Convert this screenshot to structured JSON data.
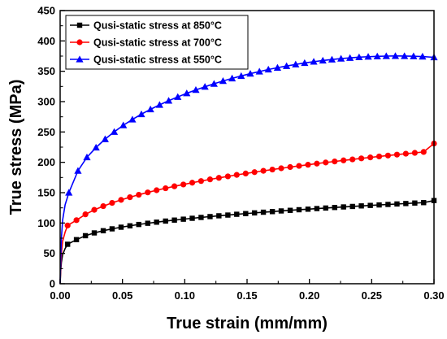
{
  "chart_data": {
    "type": "line",
    "title": "",
    "xlabel": "True strain (mm/mm)",
    "ylabel": "True stress (MPa)",
    "xlim": [
      0.0,
      0.3
    ],
    "ylim": [
      0,
      450
    ],
    "x_ticks": [
      "0.00",
      "0.05",
      "0.10",
      "0.15",
      "0.20",
      "0.25",
      "0.30"
    ],
    "y_ticks": [
      "0",
      "50",
      "100",
      "150",
      "200",
      "250",
      "300",
      "350",
      "400",
      "450"
    ],
    "grid": false,
    "legend_position": "top-left",
    "series": [
      {
        "name": "Qusi-static stress at 850°C",
        "color": "#000000",
        "marker": "square",
        "x": [
          0,
          0.0005,
          0.001,
          0.002,
          0.004,
          0.006,
          0.0131,
          0.0203,
          0.0274,
          0.0346,
          0.0417,
          0.0489,
          0.056,
          0.0631,
          0.0703,
          0.0774,
          0.0846,
          0.0917,
          0.0989,
          0.106,
          0.1131,
          0.1203,
          0.1274,
          0.1346,
          0.1417,
          0.1489,
          0.156,
          0.1631,
          0.1703,
          0.1774,
          0.1846,
          0.1917,
          0.1989,
          0.206,
          0.2131,
          0.2203,
          0.2274,
          0.2346,
          0.2417,
          0.2489,
          0.256,
          0.2631,
          0.2703,
          0.2774,
          0.2846,
          0.2917,
          0.3
        ],
        "y": [
          0,
          22,
          35,
          48,
          58,
          65,
          72.6,
          79.1,
          83.7,
          87.3,
          90.4,
          93.1,
          95.4,
          97.6,
          99.6,
          101.4,
          103.2,
          104.8,
          106.3,
          107.8,
          109.2,
          110.6,
          111.9,
          113.1,
          114.4,
          115.5,
          116.7,
          117.8,
          118.8,
          119.9,
          120.9,
          121.9,
          122.8,
          123.8,
          124.7,
          125.6,
          126.5,
          127.3,
          128.2,
          129.0,
          129.8,
          130.6,
          131.4,
          132.1,
          132.9,
          133.6,
          137
        ]
      },
      {
        "name": "Qusi-static stress at 700°C",
        "color": "#ff0000",
        "marker": "circle",
        "x": [
          0,
          0.0005,
          0.001,
          0.002,
          0.004,
          0.006,
          0.0131,
          0.0203,
          0.0274,
          0.0346,
          0.0417,
          0.0489,
          0.056,
          0.0631,
          0.0703,
          0.0774,
          0.0846,
          0.0917,
          0.0989,
          0.106,
          0.1131,
          0.1203,
          0.1274,
          0.1346,
          0.1417,
          0.1489,
          0.156,
          0.1631,
          0.1703,
          0.1774,
          0.1846,
          0.1917,
          0.1989,
          0.206,
          0.2131,
          0.2203,
          0.2274,
          0.2346,
          0.2417,
          0.2489,
          0.256,
          0.2631,
          0.2703,
          0.2774,
          0.2846,
          0.2917,
          0.3
        ],
        "y": [
          0,
          30,
          50,
          70,
          85,
          96,
          104.7,
          114.3,
          121.7,
          127.8,
          133.2,
          138.1,
          142.5,
          146.6,
          150.4,
          154.0,
          157.3,
          160.5,
          163.5,
          166.4,
          169.2,
          171.9,
          174.4,
          176.9,
          179.3,
          181.6,
          183.8,
          186.0,
          188.1,
          190.2,
          192.2,
          194.1,
          196.0,
          197.9,
          199.7,
          201.4,
          203.2,
          204.8,
          206.5,
          208.1,
          209.7,
          211.2,
          212.7,
          214.2,
          215.6,
          217.1,
          231
        ]
      },
      {
        "name": "Qusi-static stress at 550°C",
        "color": "#0000ff",
        "marker": "triangle",
        "x": [
          0,
          0.0005,
          0.001,
          0.002,
          0.004,
          0.007,
          0.0143,
          0.0215,
          0.0288,
          0.0361,
          0.0434,
          0.0507,
          0.058,
          0.0652,
          0.0725,
          0.0798,
          0.0871,
          0.0944,
          0.1016,
          0.1089,
          0.1162,
          0.1235,
          0.1307,
          0.138,
          0.1453,
          0.1526,
          0.1599,
          0.1671,
          0.1744,
          0.1817,
          0.189,
          0.1962,
          0.2035,
          0.2108,
          0.2181,
          0.2254,
          0.2326,
          0.2399,
          0.2472,
          0.2545,
          0.2617,
          0.269,
          0.2763,
          0.2836,
          0.2908,
          0.3
        ],
        "y": [
          0,
          45,
          75,
          105,
          130,
          150,
          186.0,
          208.3,
          224.4,
          238.2,
          250.2,
          261.0,
          270.6,
          279.3,
          287.3,
          294.7,
          301.5,
          307.8,
          313.8,
          319.3,
          324.5,
          329.4,
          334.0,
          338.3,
          342.3,
          346.1,
          349.6,
          352.9,
          355.9,
          358.7,
          361.3,
          363.7,
          365.8,
          367.7,
          369.4,
          370.9,
          372.1,
          373.2,
          374.0,
          374.6,
          375.0,
          375.2,
          375.1,
          374.8,
          374.3,
          373
        ]
      }
    ]
  }
}
